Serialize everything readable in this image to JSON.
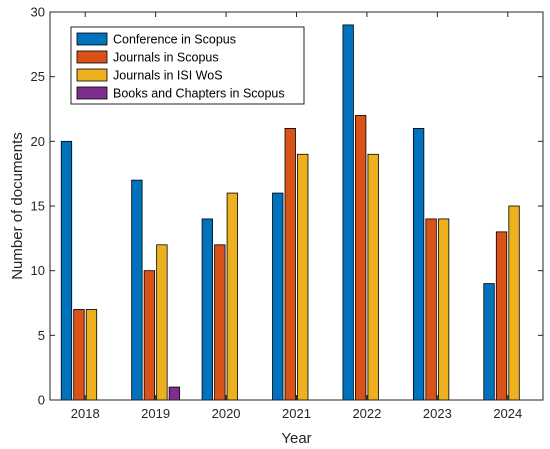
{
  "chart_data": {
    "type": "bar",
    "xlabel": "Year",
    "ylabel": "Number of documents",
    "ylim": [
      0,
      30
    ],
    "yticks": [
      "0",
      "5",
      "10",
      "15",
      "20",
      "25",
      "30"
    ],
    "grid": false,
    "legend_position": "top-left",
    "categories": [
      "2018",
      "2019",
      "2020",
      "2021",
      "2022",
      "2023",
      "2024"
    ],
    "series": [
      {
        "name": "Conference in Scopus",
        "color": "#0072BD",
        "values": [
          20,
          17,
          14,
          16,
          29,
          21,
          9
        ]
      },
      {
        "name": "Journals in Scopus",
        "color": "#D95319",
        "values": [
          7,
          10,
          12,
          21,
          22,
          14,
          13
        ]
      },
      {
        "name": "Journals in ISI WoS",
        "color": "#EDB120",
        "values": [
          7,
          12,
          16,
          19,
          19,
          14,
          15
        ]
      },
      {
        "name": "Books and Chapters in Scopus",
        "color": "#7E2F8E",
        "values": [
          0,
          1,
          0,
          0,
          0,
          0,
          0
        ]
      }
    ]
  }
}
